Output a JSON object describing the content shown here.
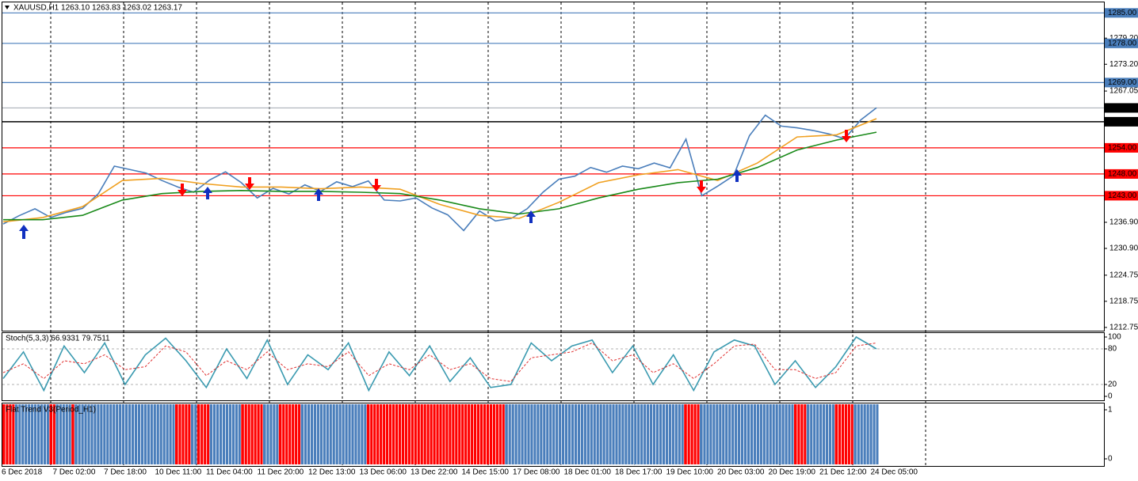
{
  "chart_data": [
    {
      "type": "line",
      "title": "XAUUSD,H1  1263.10 1263.83 1263.02 1263.17",
      "ylim": [
        1212.0,
        1287.6
      ],
      "yticks": [
        {
          "value": 1279.2,
          "label": "1279.20"
        },
        {
          "value": 1273.2,
          "label": "1273.20"
        },
        {
          "value": 1267.05,
          "label": "1267.05"
        },
        {
          "value": 1236.9,
          "label": "1236.90"
        },
        {
          "value": 1230.9,
          "label": "1230.90"
        },
        {
          "value": 1224.75,
          "label": "1224.75"
        },
        {
          "value": 1218.75,
          "label": "1218.75"
        },
        {
          "value": 1212.75,
          "label": "1212.75"
        }
      ],
      "levels": [
        {
          "value": 1285,
          "label": "1285.00",
          "color": "#4a7ebb"
        },
        {
          "value": 1278,
          "label": "1278.00",
          "color": "#4a7ebb"
        },
        {
          "value": 1269,
          "label": "1269.00",
          "color": "#4a7ebb"
        },
        {
          "value": 1260,
          "label": "1260.00",
          "color": "#000000"
        },
        {
          "value": 1254,
          "label": "1254.00",
          "color": "#ff0000"
        },
        {
          "value": 1248,
          "label": "1248.00",
          "color": "#ff0000"
        },
        {
          "value": 1243,
          "label": "1243.00",
          "color": "#ff0000"
        }
      ],
      "last": {
        "value": 1263.17,
        "label": "1263.17",
        "color": "#a0a8b0"
      },
      "series": [
        {
          "color": "#4a7ebb",
          "values": [
            1236.5,
            1238.4,
            1240.0,
            1238.0,
            1239.2,
            1240.1,
            1243.5,
            1249.8,
            1249.0,
            1248.2,
            1246.5,
            1245.0,
            1243.8,
            1246.6,
            1248.5,
            1246.0,
            1242.5,
            1244.7,
            1243.4,
            1245.5,
            1244.0,
            1246.2,
            1245.1,
            1246.4,
            1242.0,
            1241.8,
            1242.5,
            1240.2,
            1238.6,
            1235.0,
            1239.5,
            1237.2,
            1237.8,
            1240.0,
            1243.8,
            1246.8,
            1247.5,
            1249.5,
            1248.4,
            1249.8,
            1249.2,
            1250.5,
            1249.4,
            1256.0,
            1243.0,
            1245.2,
            1247.6,
            1256.8,
            1261.5,
            1259.0,
            1258.6,
            1258.0,
            1257.2,
            1256.1,
            1260.4,
            1263.2
          ]
        },
        {
          "color": "#f0a020",
          "values": [
            1237.0,
            1238.0,
            1240.5,
            1246.5,
            1247.0,
            1245.8,
            1245.0,
            1245.0,
            1244.6,
            1245.0,
            1244.5,
            1241.0,
            1238.5,
            1237.8,
            1241.5,
            1246.0,
            1247.8,
            1249.0,
            1246.5,
            1250.5,
            1256.5,
            1257.0,
            1260.7
          ]
        },
        {
          "color": "#1a8a1a",
          "values": [
            1237.5,
            1237.5,
            1238.5,
            1242.0,
            1243.5,
            1244.0,
            1244.2,
            1244.0,
            1244.0,
            1243.8,
            1243.5,
            1242.0,
            1240.0,
            1238.8,
            1240.0,
            1242.5,
            1244.5,
            1246.0,
            1246.8,
            1249.5,
            1253.5,
            1255.8,
            1257.6
          ]
        }
      ]
    },
    {
      "type": "line",
      "title": "Stoch(5,3,3) 66.9331 79.7511",
      "ylim": [
        0,
        100
      ],
      "yticks": [
        0,
        20,
        80,
        100
      ],
      "levels": [
        20,
        80
      ],
      "series": [
        {
          "color": "#3a9ab0",
          "values": [
            30,
            75,
            10,
            85,
            40,
            90,
            20,
            70,
            98,
            60,
            15,
            80,
            30,
            95,
            20,
            70,
            45,
            90,
            10,
            75,
            35,
            85,
            25,
            65,
            15,
            20,
            90,
            60,
            85,
            95,
            40,
            85,
            20,
            70,
            10,
            75,
            95,
            85,
            20,
            60,
            15,
            50,
            100,
            80
          ]
        },
        {
          "color": "#e03030",
          "dash": true,
          "values": [
            40,
            55,
            30,
            60,
            55,
            70,
            45,
            50,
            85,
            75,
            35,
            60,
            45,
            75,
            45,
            55,
            50,
            75,
            35,
            55,
            45,
            70,
            45,
            55,
            30,
            25,
            65,
            70,
            75,
            90,
            60,
            70,
            40,
            55,
            30,
            55,
            85,
            88,
            45,
            45,
            30,
            40,
            85,
            90
          ]
        }
      ]
    },
    {
      "type": "bar",
      "title": "Flat Trend V3(Period_H1)",
      "ylim": [
        0,
        1
      ],
      "yticks": [
        0,
        1
      ],
      "segments": [
        {
          "color": "#ff0000",
          "n": 4
        },
        {
          "color": "#4a7ebb",
          "n": 11
        },
        {
          "color": "#ff0000",
          "n": 2
        },
        {
          "color": "#4a7ebb",
          "n": 5
        },
        {
          "color": "#ff0000",
          "n": 1
        },
        {
          "color": "#4a7ebb",
          "n": 32
        },
        {
          "color": "#ff0000",
          "n": 5
        },
        {
          "color": "#4a7ebb",
          "n": 2
        },
        {
          "color": "#ff0000",
          "n": 4
        },
        {
          "color": "#4a7ebb",
          "n": 10
        },
        {
          "color": "#ff0000",
          "n": 7
        },
        {
          "color": "#4a7ebb",
          "n": 5
        },
        {
          "color": "#ff0000",
          "n": 7
        },
        {
          "color": "#4a7ebb",
          "n": 21
        },
        {
          "color": "#ff0000",
          "n": 44
        },
        {
          "color": "#4a7ebb",
          "n": 57
        },
        {
          "color": "#ff0000",
          "n": 5
        },
        {
          "color": "#4a7ebb",
          "n": 30
        },
        {
          "color": "#ff0000",
          "n": 4
        },
        {
          "color": "#4a7ebb",
          "n": 9
        },
        {
          "color": "#ff0000",
          "n": 6
        },
        {
          "color": "#4a7ebb",
          "n": 8
        }
      ],
      "x_labels": [
        "6 Dec 2018",
        "7 Dec 02:00",
        "7 Dec 18:00",
        "10 Dec 11:00",
        "11 Dec 04:00",
        "11 Dec 20:00",
        "12 Dec 13:00",
        "13 Dec 06:00",
        "13 Dec 22:00",
        "14 Dec 15:00",
        "17 Dec 08:00",
        "18 Dec 01:00",
        "18 Dec 17:00",
        "19 Dec 10:00",
        "20 Dec 03:00",
        "20 Dec 19:00",
        "21 Dec 12:00",
        "24 Dec 05:00"
      ]
    }
  ]
}
